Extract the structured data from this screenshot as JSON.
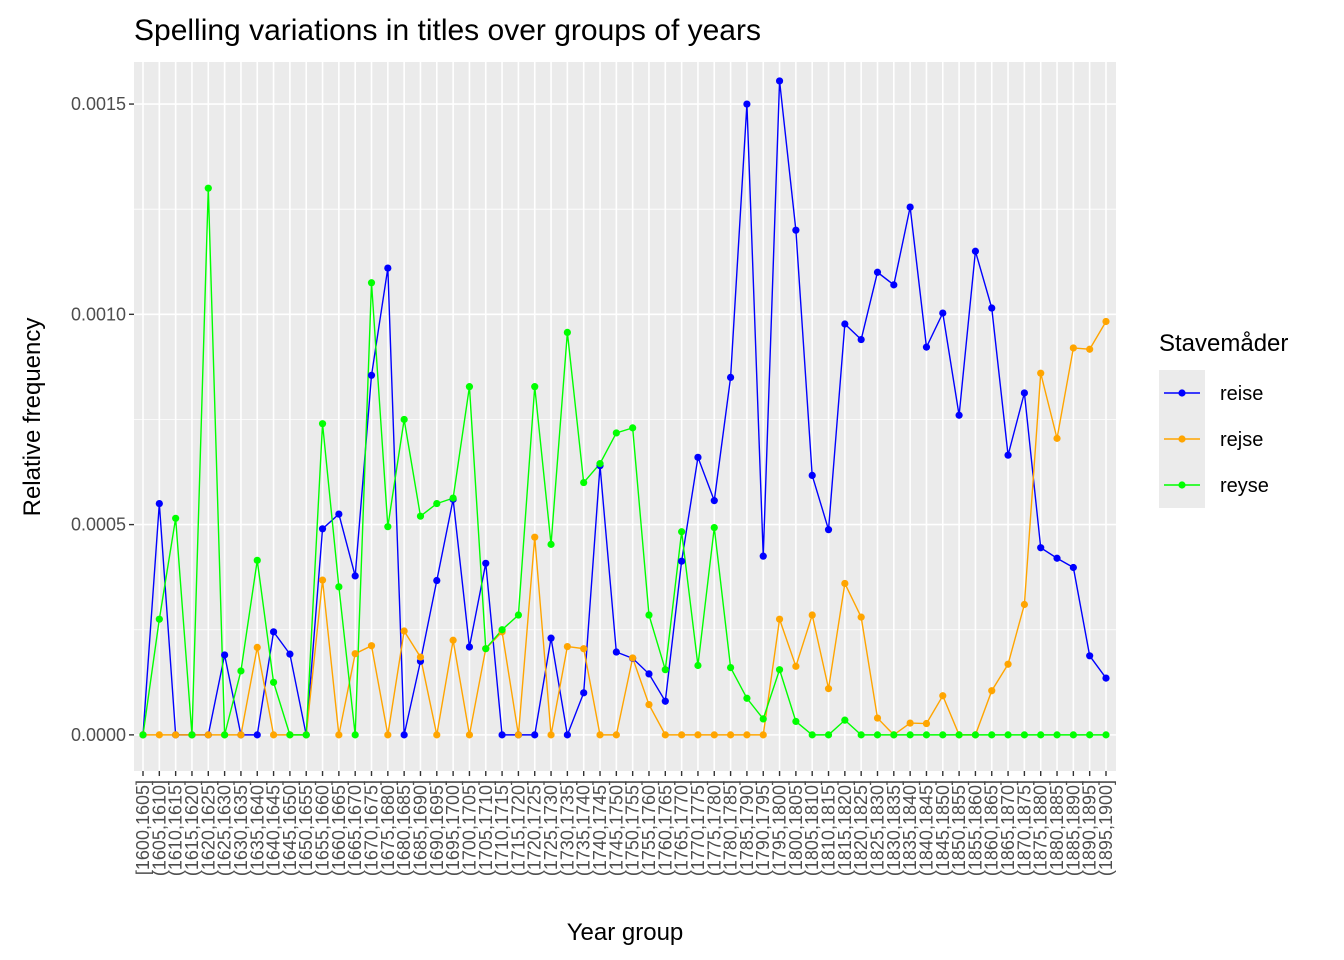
{
  "chart_data": {
    "type": "line",
    "title": "Spelling variations in titles over groups of years",
    "xlabel": "Year group",
    "ylabel": "Relative frequency",
    "ylim": [
      -8.59e-05,
      0.0016
    ],
    "yticks": [
      0,
      0.0005,
      0.001,
      0.0015
    ],
    "ytick_labels": [
      "0.0000",
      "0.0005",
      "0.0010",
      "0.0015"
    ],
    "grid": true,
    "legend_position": "right",
    "legend_title": "Stavemåder",
    "categories": [
      "[1600,1605]",
      "(1605,1610]",
      "(1610,1615]",
      "(1615,1620]",
      "(1620,1625]",
      "(1625,1630]",
      "(1630,1635]",
      "(1635,1640]",
      "(1640,1645]",
      "(1645,1650]",
      "(1650,1655]",
      "(1655,1660]",
      "(1660,1665]",
      "(1665,1670]",
      "(1670,1675]",
      "(1675,1680]",
      "(1680,1685]",
      "(1685,1690]",
      "(1690,1695]",
      "(1695,1700]",
      "(1700,1705]",
      "(1705,1710]",
      "(1710,1715]",
      "(1715,1720]",
      "(1720,1725]",
      "(1725,1730]",
      "(1730,1735]",
      "(1735,1740]",
      "(1740,1745]",
      "(1745,1750]",
      "(1750,1755]",
      "(1755,1760]",
      "(1760,1765]",
      "(1765,1770]",
      "(1770,1775]",
      "(1775,1780]",
      "(1780,1785]",
      "(1785,1790]",
      "(1790,1795]",
      "(1795,1800]",
      "(1800,1805]",
      "(1805,1810]",
      "(1810,1815]",
      "(1815,1820]",
      "(1820,1825]",
      "(1825,1830]",
      "(1830,1835]",
      "(1835,1840]",
      "(1840,1845]",
      "(1845,1850]",
      "(1850,1855]",
      "(1855,1860]",
      "(1860,1865]",
      "(1865,1870]",
      "(1870,1875]",
      "(1875,1880]",
      "(1880,1885]",
      "(1885,1890]",
      "(1890,1895]",
      "(1895,1900]"
    ],
    "series": [
      {
        "name": "reise",
        "color": "#0000ff",
        "values": [
          0,
          0.00055,
          0,
          0,
          0,
          0.00019,
          0,
          0,
          0.000245,
          0.000192,
          0,
          0.00049,
          0.000525,
          0.000378,
          0.000855,
          0.00111,
          0,
          0.000175,
          0.000367,
          0.00056,
          0.000209,
          0.000408,
          0,
          0,
          0,
          0.00023,
          0,
          0.0001,
          0.00064,
          0.000197,
          0.000182,
          0.000145,
          8e-05,
          0.000413,
          0.00066,
          0.000557,
          0.00085,
          0.0015,
          0.000425,
          0.001555,
          0.0012,
          0.000617,
          0.000488,
          0.000977,
          0.00094,
          0.0011,
          0.00107,
          0.001255,
          0.000922,
          0.001003,
          0.00076,
          0.00115,
          0.001015,
          0.000665,
          0.000813,
          0.000445,
          0.00042,
          0.000398,
          0.000188,
          0.000135
        ]
      },
      {
        "name": "rejse",
        "color": "#ffa500",
        "values": [
          0,
          0,
          0,
          0,
          0,
          0,
          0,
          0.000208,
          0,
          0,
          0,
          0.000368,
          0,
          0.000193,
          0.000212,
          0,
          0.000247,
          0.000185,
          0,
          0.000225,
          0,
          0.000205,
          0.000245,
          0,
          0.00047,
          0,
          0.00021,
          0.000205,
          0,
          0,
          0.000183,
          7.2e-05,
          0,
          0,
          0,
          0,
          0,
          0,
          0,
          0.000275,
          0.000163,
          0.000285,
          0.00011,
          0.00036,
          0.00028,
          4e-05,
          0,
          2.8e-05,
          2.7e-05,
          9.3e-05,
          0,
          0,
          0.000105,
          0.000168,
          0.00031,
          0.00086,
          0.000705,
          0.00092,
          0.000917,
          0.000983
        ]
      },
      {
        "name": "reyse",
        "color": "#00ff00",
        "values": [
          0,
          0.000275,
          0.000515,
          0,
          0.0013,
          0,
          0.000152,
          0.000415,
          0.000125,
          0,
          0,
          0.00074,
          0.000352,
          0,
          0.001075,
          0.000495,
          0.00075,
          0.00052,
          0.00055,
          0.000563,
          0.000828,
          0.000205,
          0.00025,
          0.000285,
          0.000828,
          0.000453,
          0.000957,
          0.0006,
          0.000645,
          0.000718,
          0.00073,
          0.000285,
          0.000155,
          0.000483,
          0.000165,
          0.000493,
          0.00016,
          8.7e-05,
          3.8e-05,
          0.000155,
          3.2e-05,
          0,
          0,
          3.5e-05,
          0,
          0,
          0,
          0,
          0,
          0,
          0,
          0,
          0,
          0,
          0,
          0,
          0,
          0,
          0,
          0
        ]
      }
    ]
  }
}
